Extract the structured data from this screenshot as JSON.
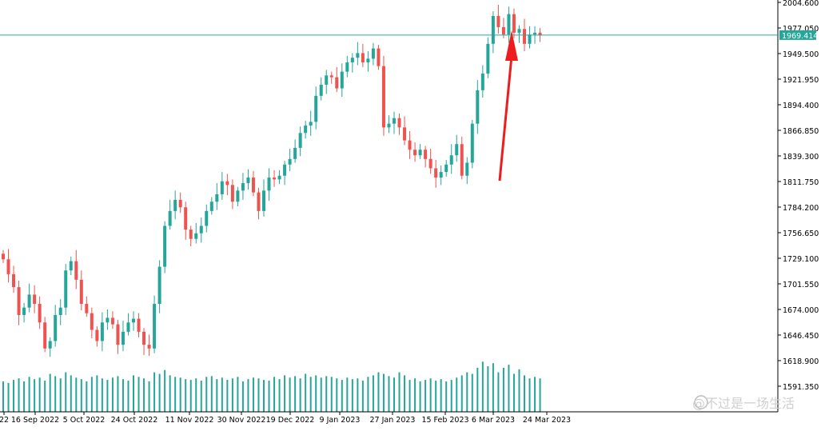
{
  "chart_data": {
    "type": "candlestick",
    "title": "",
    "xlabel": "",
    "ylabel": "",
    "ylim": [
      1591.35,
      2004.6
    ],
    "grid": false,
    "current_price": 1969.414,
    "current_price_label": "1969.414",
    "y_ticks": [
      "2004.600",
      "1977.050",
      "1949.500",
      "1921.950",
      "1894.400",
      "1866.850",
      "1839.300",
      "1811.750",
      "1784.200",
      "1756.650",
      "1729.100",
      "1701.550",
      "1674.000",
      "1646.450",
      "1618.900",
      "1591.350"
    ],
    "x_ticks": [
      "22",
      "16 Sep 2022",
      "5 Oct 2022",
      "24 Oct 2022",
      "11 Nov 2022",
      "30 Nov 2022",
      "19 Dec 2022",
      "9 Jan 2023",
      "27 Jan 2023",
      "15 Feb 2023",
      "6 Mar 2023",
      "24 Mar 2023"
    ],
    "colors": {
      "up": "#26a69a",
      "down": "#ef5350",
      "price_line": "#26a69a",
      "arrow": "#ee1c1c",
      "axis": "#000000"
    },
    "closes": [
      1728,
      1712,
      1698,
      1668,
      1676,
      1690,
      1680,
      1660,
      1632,
      1640,
      1668,
      1676,
      1716,
      1726,
      1706,
      1680,
      1670,
      1652,
      1640,
      1660,
      1665,
      1658,
      1636,
      1650,
      1660,
      1664,
      1650,
      1636,
      1632,
      1680,
      1720,
      1764,
      1780,
      1792,
      1784,
      1760,
      1750,
      1756,
      1764,
      1780,
      1790,
      1798,
      1812,
      1808,
      1790,
      1802,
      1810,
      1816,
      1800,
      1780,
      1802,
      1816,
      1814,
      1818,
      1830,
      1836,
      1848,
      1864,
      1872,
      1876,
      1904,
      1916,
      1926,
      1924,
      1912,
      1930,
      1940,
      1945,
      1950,
      1940,
      1944,
      1955,
      1936,
      1870,
      1874,
      1880,
      1870,
      1856,
      1846,
      1840,
      1846,
      1836,
      1826,
      1816,
      1822,
      1830,
      1840,
      1852,
      1818,
      1832,
      1874,
      1910,
      1928,
      1960,
      1990,
      1978,
      1970,
      1992,
      1972,
      1976,
      1960,
      1970,
      1972,
      1969
    ],
    "volumes": [
      0.4,
      0.38,
      0.42,
      0.44,
      0.4,
      0.46,
      0.43,
      0.45,
      0.41,
      0.5,
      0.47,
      0.44,
      0.52,
      0.48,
      0.45,
      0.43,
      0.4,
      0.46,
      0.48,
      0.44,
      0.42,
      0.45,
      0.47,
      0.43,
      0.41,
      0.48,
      0.46,
      0.44,
      0.4,
      0.52,
      0.5,
      0.55,
      0.48,
      0.46,
      0.45,
      0.43,
      0.42,
      0.44,
      0.41,
      0.46,
      0.47,
      0.43,
      0.45,
      0.42,
      0.44,
      0.46,
      0.4,
      0.43,
      0.45,
      0.44,
      0.42,
      0.41,
      0.46,
      0.43,
      0.48,
      0.45,
      0.47,
      0.44,
      0.5,
      0.46,
      0.48,
      0.45,
      0.47,
      0.46,
      0.44,
      0.42,
      0.45,
      0.43,
      0.44,
      0.41,
      0.46,
      0.48,
      0.52,
      0.5,
      0.47,
      0.45,
      0.52,
      0.48,
      0.42,
      0.44,
      0.4,
      0.42,
      0.44,
      0.41,
      0.43,
      0.4,
      0.42,
      0.45,
      0.48,
      0.52,
      0.5,
      0.58,
      0.66,
      0.6,
      0.64,
      0.52,
      0.58,
      0.62,
      0.5,
      0.56,
      0.48,
      0.44,
      0.46,
      0.44
    ],
    "annotation": "red arrow pointing up at late-March 2023 rally"
  },
  "watermark": "@不过是一场生活"
}
